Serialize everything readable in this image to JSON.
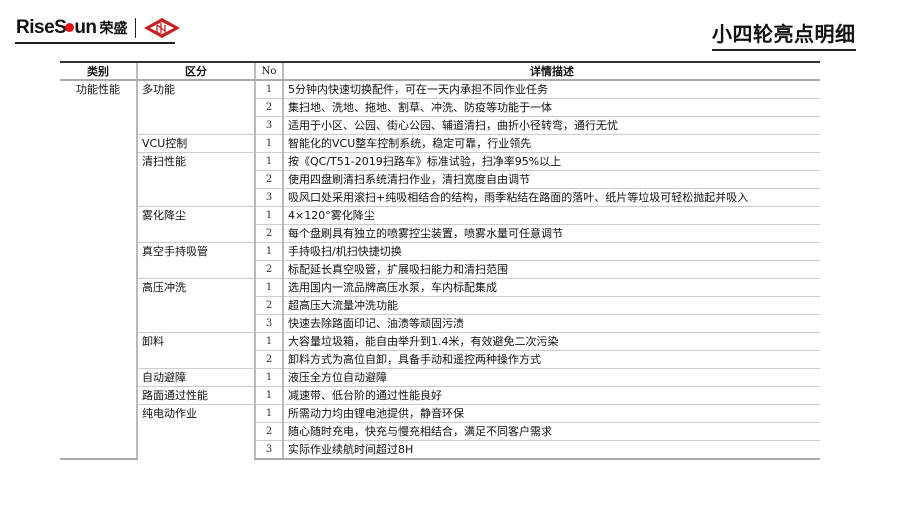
{
  "logo": {
    "text_left": "Rise",
    "text_right": "un",
    "cn": "荣盛",
    "emblem": "rongsheng-diamond-emblem"
  },
  "title": "小四轮亮点明细",
  "table": {
    "headers": [
      "类别",
      "区分",
      "No",
      "详情描述"
    ],
    "categories": [
      {
        "label": "功能性能",
        "groups": [
          {
            "label": "多功能",
            "items": [
              {
                "no": "1",
                "text": "5分钟内快速切换配件，可在一天内承担不同作业任务"
              },
              {
                "no": "2",
                "text": "集扫地、洗地、拖地、割草、冲洗、防疫等功能于一体"
              },
              {
                "no": "3",
                "text": "适用于小区、公园、街心公园、辅道清扫，曲折小径转弯，通行无忧"
              }
            ]
          },
          {
            "label": "VCU控制",
            "items": [
              {
                "no": "1",
                "text": "智能化的VCU整车控制系统，稳定可靠，行业领先"
              }
            ]
          },
          {
            "label": "清扫性能",
            "items": [
              {
                "no": "1",
                "text": "按《QC/T51-2019扫路车》标准试验，扫净率95%以上"
              },
              {
                "no": "2",
                "text": "使用四盘刷清扫系统清扫作业，清扫宽度自由调节"
              },
              {
                "no": "3",
                "text": "吸风口处采用滚扫+纯吸相结合的结构，雨季粘结在路面的落叶、纸片等垃圾可轻松抛起并吸入"
              }
            ]
          },
          {
            "label": "雾化降尘",
            "items": [
              {
                "no": "1",
                "text": "4×120°雾化降尘"
              },
              {
                "no": "2",
                "text": "每个盘刷具有独立的喷雾控尘装置，喷雾水量可任意调节"
              }
            ]
          },
          {
            "label": "真空手持吸管",
            "items": [
              {
                "no": "1",
                "text": "手持吸扫/机扫快捷切换"
              },
              {
                "no": "2",
                "text": "标配延长真空吸管，扩展吸扫能力和清扫范围"
              }
            ]
          },
          {
            "label": "高压冲洗",
            "items": [
              {
                "no": "1",
                "text": "选用国内一流品牌高压水泵，车内标配集成"
              },
              {
                "no": "2",
                "text": "超高压大流量冲洗功能"
              },
              {
                "no": "3",
                "text": "快速去除路面印记、油渍等顽固污渍"
              }
            ]
          },
          {
            "label": "卸料",
            "items": [
              {
                "no": "1",
                "text": "大容量垃圾箱，能自由举升到1.4米，有效避免二次污染"
              },
              {
                "no": "2",
                "text": "卸料方式为高位自卸，具备手动和遥控两种操作方式"
              }
            ]
          },
          {
            "label": "自动避障",
            "items": [
              {
                "no": "1",
                "text": "液压全方位自动避障"
              }
            ]
          },
          {
            "label": "路面通过性能",
            "items": [
              {
                "no": "1",
                "text": "减速带、低台阶的通过性能良好"
              }
            ]
          },
          {
            "label": "纯电动作业",
            "items": [
              {
                "no": "1",
                "text": "所需动力均由锂电池提供，静音环保"
              },
              {
                "no": "2",
                "text": "随心随时充电，快充与慢充相结合，满足不同客户需求"
              },
              {
                "no": "3",
                "text": "实际作业续航时间超过8H"
              }
            ]
          }
        ]
      }
    ]
  }
}
